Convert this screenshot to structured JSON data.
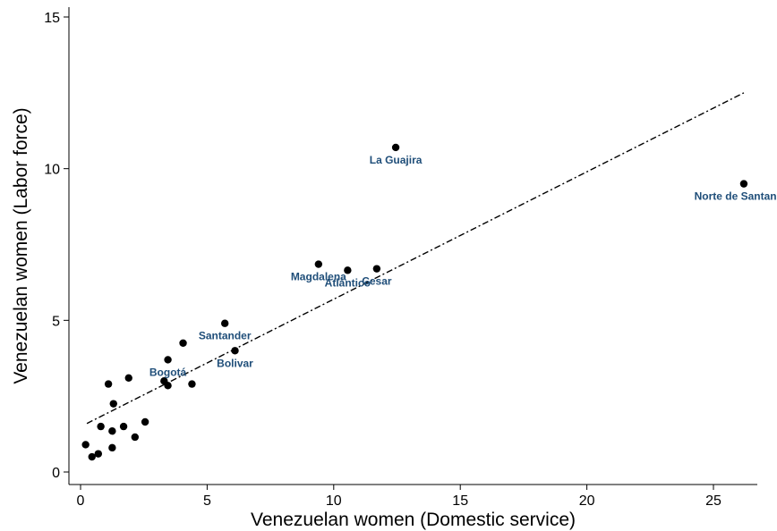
{
  "chart_data": {
    "type": "scatter",
    "xlabel": "Venezuelan women (Domestic service)",
    "ylabel": "Venezuelan women (Labor force)",
    "xlim": [
      0,
      26.5
    ],
    "ylim": [
      0,
      15.5
    ],
    "x_ticks": [
      0,
      5,
      10,
      15,
      20,
      25
    ],
    "y_ticks": [
      0,
      5,
      10,
      15
    ],
    "grid": false,
    "colors": {
      "points": "#000000",
      "labels": "#1f4e79",
      "fit_line": "#000000"
    },
    "points": [
      {
        "x": 0.2,
        "y": 0.9
      },
      {
        "x": 0.45,
        "y": 0.5
      },
      {
        "x": 0.7,
        "y": 0.6
      },
      {
        "x": 0.8,
        "y": 1.5
      },
      {
        "x": 1.1,
        "y": 2.9
      },
      {
        "x": 1.25,
        "y": 0.8
      },
      {
        "x": 1.25,
        "y": 1.35
      },
      {
        "x": 1.3,
        "y": 2.25
      },
      {
        "x": 1.7,
        "y": 1.5
      },
      {
        "x": 1.9,
        "y": 3.1
      },
      {
        "x": 2.15,
        "y": 1.15
      },
      {
        "x": 2.55,
        "y": 1.65
      },
      {
        "x": 3.3,
        "y": 3.0
      },
      {
        "x": 3.45,
        "y": 2.85
      },
      {
        "x": 3.45,
        "y": 3.7,
        "label": "Bogotá"
      },
      {
        "x": 4.05,
        "y": 4.25
      },
      {
        "x": 4.4,
        "y": 2.9
      },
      {
        "x": 5.7,
        "y": 4.9,
        "label": "Santander"
      },
      {
        "x": 6.1,
        "y": 4.0,
        "label": "Bolivar"
      },
      {
        "x": 9.4,
        "y": 6.85,
        "label": "Magdalena"
      },
      {
        "x": 10.55,
        "y": 6.65,
        "label": "Atlántico"
      },
      {
        "x": 11.7,
        "y": 6.7,
        "label": "Cesar"
      },
      {
        "x": 12.45,
        "y": 10.7,
        "label": "La Guajira"
      },
      {
        "x": 26.2,
        "y": 9.5,
        "label": "Norte de Santander"
      }
    ],
    "fit_line": {
      "x": [
        0.25,
        26.2
      ],
      "y": [
        1.6,
        12.5
      ]
    }
  }
}
